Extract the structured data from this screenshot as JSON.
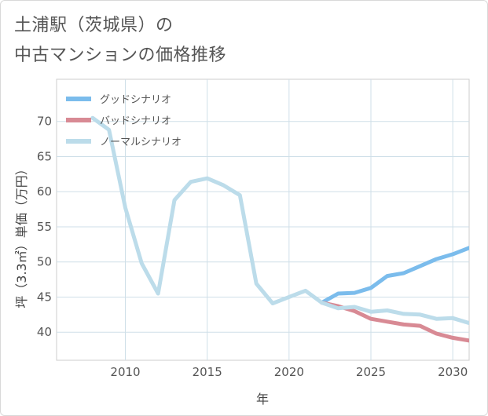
{
  "title": {
    "line1": "土浦駅（茨城県）の",
    "line2": "中古マンションの価格推移"
  },
  "chart_data": {
    "type": "line",
    "title": "土浦駅（茨城県）の中古マンションの価格推移",
    "xlabel": "年",
    "ylabel": "坪（3.3㎡）単価（万円）",
    "xlim": [
      2005.8,
      2031
    ],
    "ylim": [
      36,
      76
    ],
    "xticks": [
      2010,
      2015,
      2020,
      2025,
      2030
    ],
    "yticks": [
      40,
      45,
      50,
      55,
      60,
      65,
      70
    ],
    "grid": true,
    "legend_position": "top-left",
    "series": [
      {
        "name": "グッドシナリオ",
        "color": "#7bbcec",
        "x": [
          2022,
          2023,
          2024,
          2025,
          2026,
          2027,
          2028,
          2029,
          2030,
          2031
        ],
        "y": [
          44.2,
          45.5,
          45.6,
          46.3,
          48.0,
          48.4,
          49.4,
          50.4,
          51.1,
          52.0
        ]
      },
      {
        "name": "バッドシナリオ",
        "color": "#d88a94",
        "x": [
          2022,
          2023,
          2024,
          2025,
          2026,
          2027,
          2028,
          2029,
          2030,
          2031
        ],
        "y": [
          44.2,
          43.7,
          43.0,
          41.9,
          41.5,
          41.1,
          40.9,
          39.8,
          39.2,
          38.8
        ]
      },
      {
        "name": "ノーマルシナリオ",
        "color": "#bcdcea",
        "x": [
          2008,
          2009,
          2010,
          2011,
          2012,
          2013,
          2014,
          2015,
          2016,
          2017,
          2018,
          2019,
          2020,
          2021,
          2022,
          2023,
          2024,
          2025,
          2026,
          2027,
          2028,
          2029,
          2030,
          2031
        ],
        "y": [
          70.5,
          68.8,
          57.7,
          49.8,
          45.5,
          58.8,
          61.4,
          61.9,
          60.9,
          59.5,
          46.9,
          44.1,
          45.0,
          45.9,
          44.2,
          43.4,
          43.6,
          42.9,
          43.1,
          42.6,
          42.5,
          41.9,
          42.0,
          41.3
        ]
      }
    ]
  }
}
